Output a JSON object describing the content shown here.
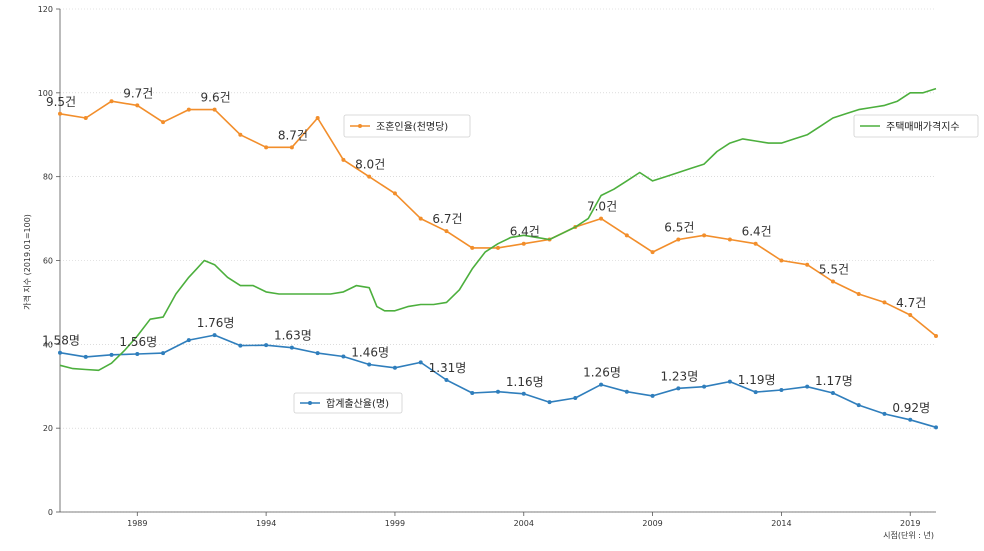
{
  "chart_data": {
    "type": "line",
    "xlabel": "시점(단위 : 년)",
    "ylabel": "가격 지수 (2019.01=100)",
    "xlim": [
      1986,
      2020
    ],
    "ylim": [
      0,
      120
    ],
    "grid": true,
    "yticks": [
      0,
      20,
      40,
      60,
      80,
      100,
      120
    ],
    "xticks": [
      1989,
      1994,
      1999,
      2004,
      2009,
      2014,
      2019
    ],
    "series": [
      {
        "name": "조혼인율(천명당)",
        "color": "#f28e2b",
        "x": [
          1986,
          1987,
          1988,
          1989,
          1990,
          1991,
          1992,
          1993,
          1994,
          1995,
          1996,
          1997,
          1998,
          1999,
          2000,
          2001,
          2002,
          2003,
          2004,
          2005,
          2006,
          2007,
          2008,
          2009,
          2010,
          2011,
          2012,
          2013,
          2014,
          2015,
          2016,
          2017,
          2018,
          2019,
          2020
        ],
        "values": [
          95,
          94,
          98,
          97,
          93,
          96,
          96,
          90,
          87,
          87,
          94,
          84,
          80,
          76,
          70,
          67,
          63,
          63,
          64,
          65,
          68,
          70,
          66,
          62,
          65,
          66,
          65,
          64,
          60,
          59,
          55,
          52,
          50,
          47,
          42
        ]
      },
      {
        "name": "합계출산율(명)",
        "color": "#2f7ebc",
        "x": [
          1986,
          1987,
          1988,
          1989,
          1990,
          1991,
          1992,
          1993,
          1994,
          1995,
          1996,
          1997,
          1998,
          1999,
          2000,
          2001,
          2002,
          2003,
          2004,
          2005,
          2006,
          2007,
          2008,
          2009,
          2010,
          2011,
          2012,
          2013,
          2014,
          2015,
          2016,
          2017,
          2018,
          2019,
          2020
        ],
        "values": [
          38,
          37,
          37.5,
          37.7,
          37.9,
          41,
          42.2,
          39.7,
          39.8,
          39.2,
          37.9,
          37.1,
          35.2,
          34.4,
          35.7,
          31.5,
          28.4,
          28.7,
          28.2,
          26.2,
          27.2,
          30.4,
          28.7,
          27.7,
          29.5,
          29.9,
          31.1,
          28.6,
          29.1,
          29.9,
          28.4,
          25.5,
          23.4,
          22,
          20.2
        ]
      },
      {
        "name": "주택매매가격지수",
        "color": "#4caf3d",
        "x": [
          1986,
          1986.5,
          1987,
          1987.5,
          1988,
          1988.5,
          1989,
          1989.5,
          1990,
          1990.5,
          1991,
          1991.3,
          1991.6,
          1992,
          1992.5,
          1993,
          1993.5,
          1994,
          1994.5,
          1995,
          1995.5,
          1996,
          1996.5,
          1997,
          1997.5,
          1998,
          1998.3,
          1998.6,
          1999,
          1999.5,
          2000,
          2000.5,
          2001,
          2001.5,
          2002,
          2002.5,
          2003,
          2003.5,
          2004,
          2004.5,
          2005,
          2005.5,
          2006,
          2006.5,
          2007,
          2007.5,
          2008,
          2008.5,
          2009,
          2009.5,
          2010,
          2010.5,
          2011,
          2011.5,
          2012,
          2012.5,
          2013,
          2013.5,
          2014,
          2014.5,
          2015,
          2015.5,
          2016,
          2016.5,
          2017,
          2017.5,
          2018,
          2018.5,
          2019,
          2019.5,
          2020
        ],
        "values": [
          35,
          34.2,
          34,
          33.8,
          35.5,
          38.5,
          42,
          46,
          46.5,
          52,
          56,
          58,
          60,
          59,
          56,
          54,
          54,
          52.5,
          52,
          52,
          52,
          52,
          52,
          52.5,
          54,
          53.5,
          49,
          48,
          48,
          49,
          49.5,
          49.5,
          50,
          53,
          58,
          62,
          64,
          65.5,
          66,
          65.5,
          65,
          66.5,
          68,
          70,
          75.5,
          77,
          79,
          81,
          79,
          80,
          81,
          82,
          83,
          86,
          88,
          89,
          88.5,
          88,
          88,
          89,
          90,
          92,
          94,
          95,
          96,
          96.5,
          97,
          98,
          100,
          100,
          101
        ]
      }
    ],
    "legend": [
      {
        "label": "조혼인율(천명당)",
        "placement": "upper-center"
      },
      {
        "label": "주택매매가격지수",
        "placement": "upper-right"
      },
      {
        "label": "합계출산율(명)",
        "placement": "lower-left"
      }
    ],
    "annotations": [
      {
        "text": "9.5건",
        "x": 1986,
        "y": 95
      },
      {
        "text": "9.7건",
        "x": 1989,
        "y": 97
      },
      {
        "text": "9.6건",
        "x": 1992,
        "y": 96
      },
      {
        "text": "8.7건",
        "x": 1995,
        "y": 87
      },
      {
        "text": "8.0건",
        "x": 1998,
        "y": 80
      },
      {
        "text": "6.7건",
        "x": 2001,
        "y": 67
      },
      {
        "text": "6.4건",
        "x": 2004,
        "y": 64
      },
      {
        "text": "7.0건",
        "x": 2007,
        "y": 70
      },
      {
        "text": "6.5건",
        "x": 2010,
        "y": 65
      },
      {
        "text": "6.4건",
        "x": 2013,
        "y": 64
      },
      {
        "text": "5.5건",
        "x": 2016,
        "y": 55
      },
      {
        "text": "4.7건",
        "x": 2019,
        "y": 47
      },
      {
        "text": "1.58명",
        "x": 1986,
        "y": 38
      },
      {
        "text": "1.56명",
        "x": 1989,
        "y": 37.7
      },
      {
        "text": "1.76명",
        "x": 1992,
        "y": 42.2
      },
      {
        "text": "1.63명",
        "x": 1995,
        "y": 39.2
      },
      {
        "text": "1.46명",
        "x": 1998,
        "y": 35.2
      },
      {
        "text": "1.31명",
        "x": 2001,
        "y": 31.5
      },
      {
        "text": "1.16명",
        "x": 2004,
        "y": 28.2
      },
      {
        "text": "1.26명",
        "x": 2007,
        "y": 30.4
      },
      {
        "text": "1.23명",
        "x": 2010,
        "y": 29.5
      },
      {
        "text": "1.19명",
        "x": 2013,
        "y": 28.6
      },
      {
        "text": "1.17명",
        "x": 2016,
        "y": 28.4
      },
      {
        "text": "0.92명",
        "x": 2019,
        "y": 22
      }
    ]
  }
}
